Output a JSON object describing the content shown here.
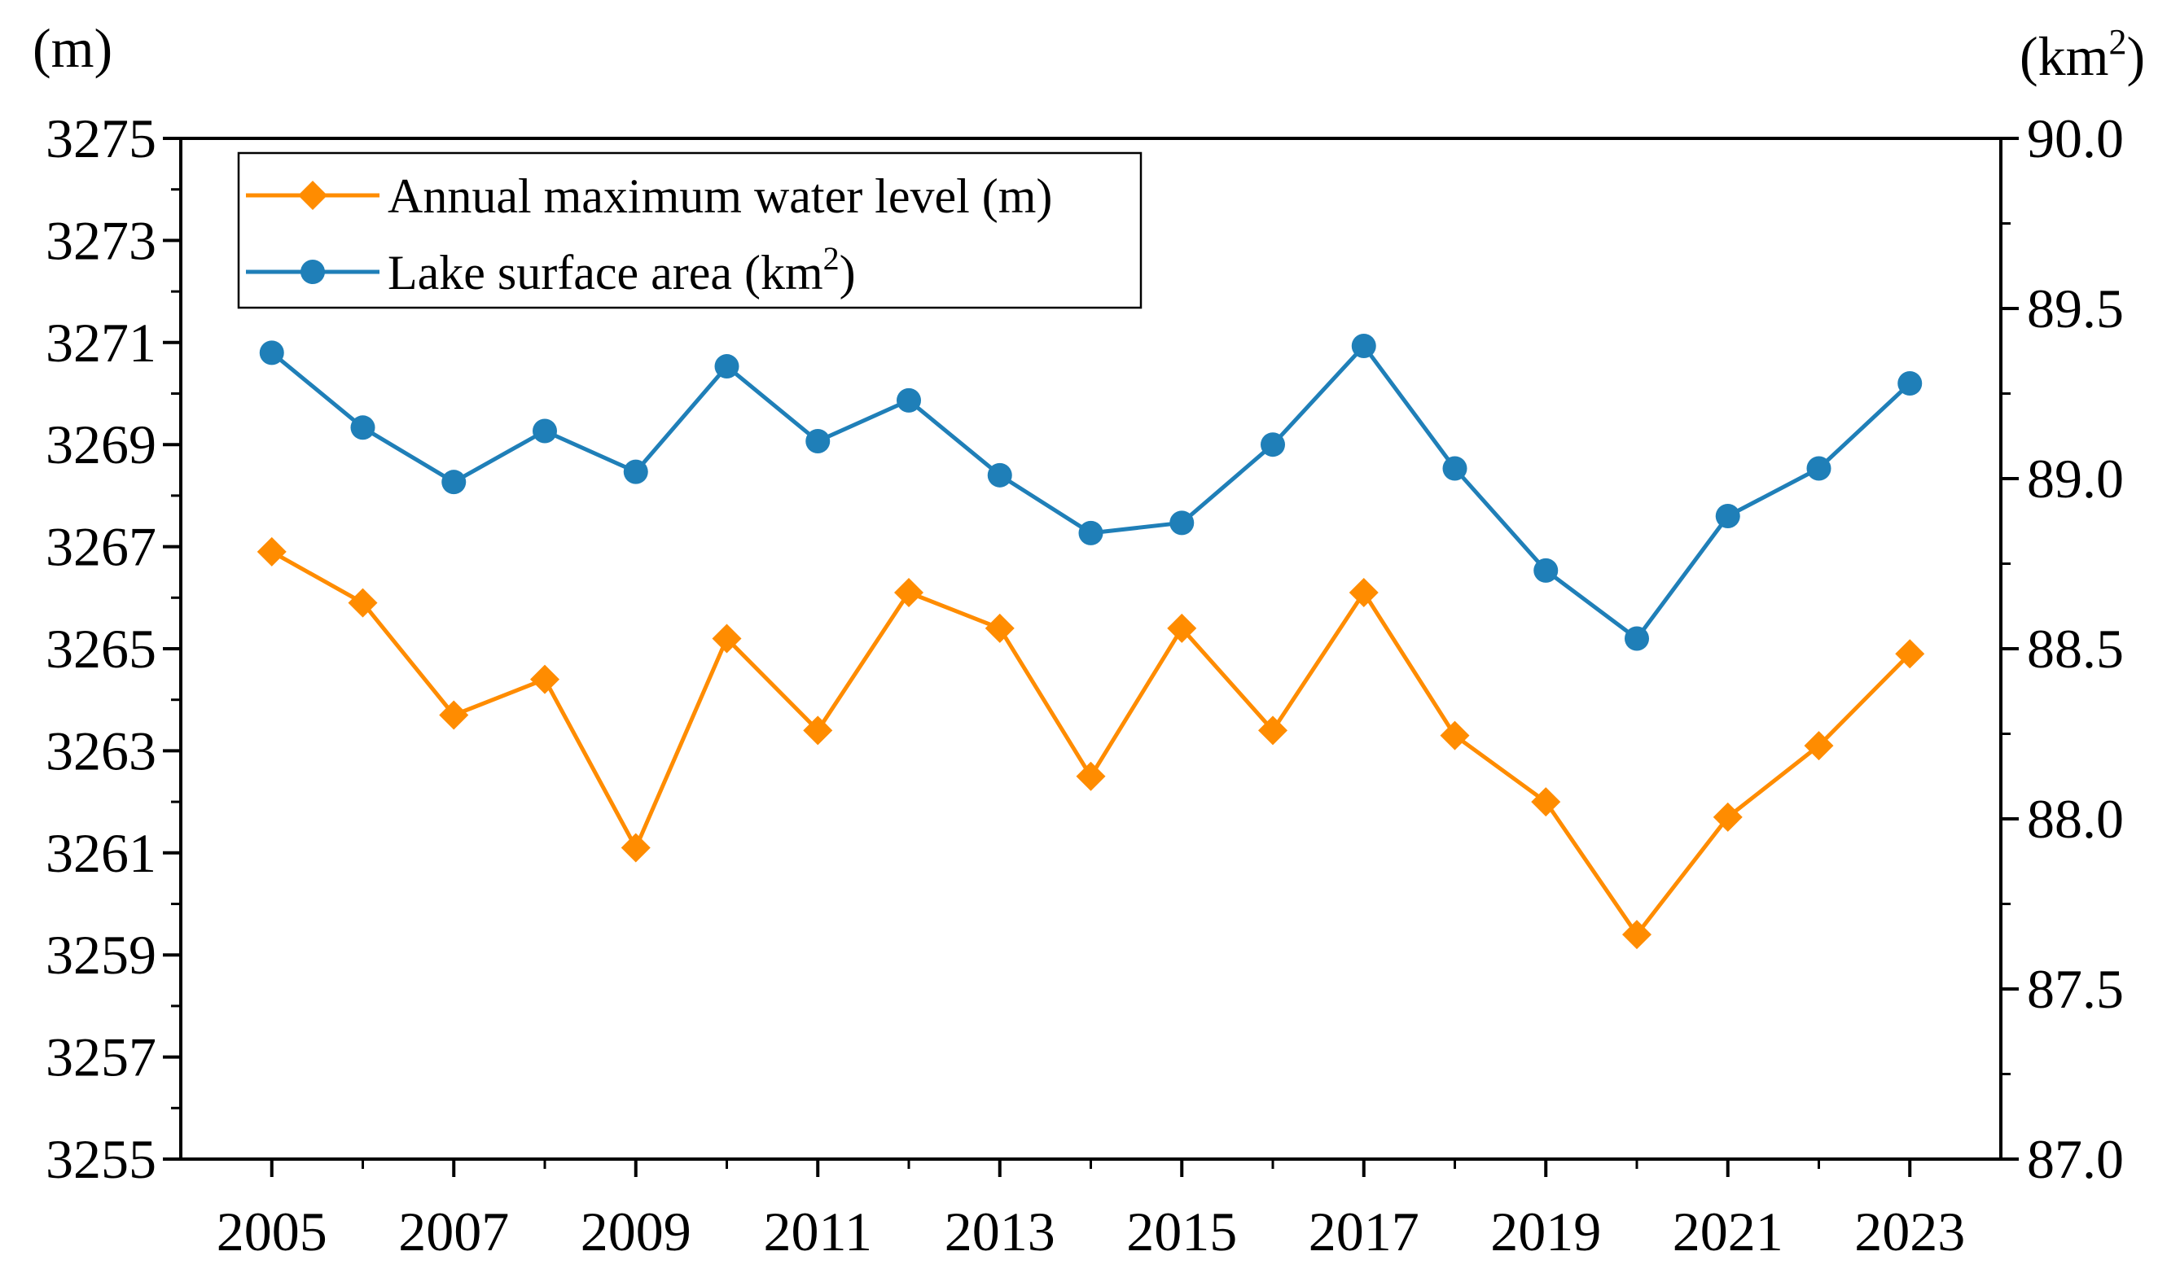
{
  "chart_data": {
    "type": "line",
    "x": [
      2005,
      2006,
      2007,
      2008,
      2009,
      2010,
      2011,
      2012,
      2013,
      2014,
      2015,
      2016,
      2017,
      2018,
      2019,
      2020,
      2021,
      2022,
      2023
    ],
    "x_tick_labels": [
      "2005",
      "2007",
      "2009",
      "2011",
      "2013",
      "2015",
      "2017",
      "2019",
      "2021",
      "2023"
    ],
    "xlim": [
      2004,
      2024
    ],
    "y_left": {
      "unit_label": "(m)",
      "ylim": [
        3255,
        3275
      ],
      "tick_labels": [
        "3255",
        "3257",
        "3259",
        "3261",
        "3263",
        "3265",
        "3267",
        "3269",
        "3271",
        "3273",
        "3275"
      ]
    },
    "y_right": {
      "unit_label_base": "(km",
      "unit_label_sup": "2",
      "unit_label_end": ")",
      "ylim": [
        87.0,
        90.0
      ],
      "tick_labels": [
        "87.0",
        "87.5",
        "88.0",
        "88.5",
        "89.0",
        "89.5",
        "90.0"
      ]
    },
    "series": [
      {
        "name": "Annual maximum water level (m)",
        "axis": "left",
        "marker": "diamond",
        "color": "#ff8c00",
        "values": [
          3266.9,
          3265.9,
          3263.7,
          3264.4,
          3261.1,
          3265.2,
          3263.4,
          3266.1,
          3265.4,
          3262.5,
          3265.4,
          3263.4,
          3266.1,
          3263.3,
          3262.0,
          3259.4,
          3261.7,
          3263.1,
          3264.9
        ]
      },
      {
        "name_base": "Lake surface area (km",
        "name_sup": "2",
        "name_end": ")",
        "axis": "right",
        "marker": "circle",
        "color": "#1f7fb8",
        "values": [
          89.37,
          89.15,
          88.99,
          89.14,
          89.02,
          89.33,
          89.11,
          89.23,
          89.01,
          88.84,
          88.87,
          89.1,
          89.39,
          89.03,
          88.73,
          88.53,
          88.89,
          89.03,
          89.28
        ]
      }
    ],
    "legend_position": "top-left",
    "grid": false
  }
}
